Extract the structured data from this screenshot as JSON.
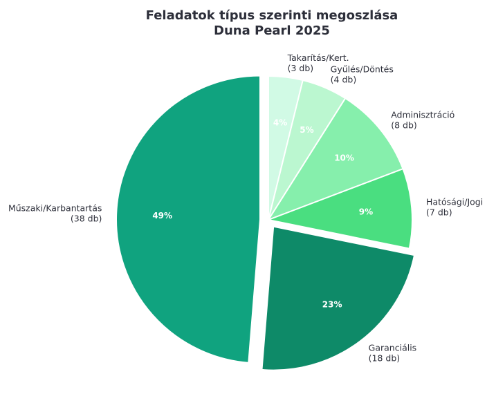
{
  "chart_data": {
    "type": "pie",
    "title_line1": "Feladatok típus szerinti megoszlása",
    "title_line2": "Duna Pearl 2025",
    "count_unit": "db",
    "start_angle_deg": 90,
    "direction": "clockwise",
    "slices": [
      {
        "label": "Takarítás/Kert.",
        "count": 3,
        "percent_label": "4%",
        "color": "#d1fae5",
        "exploded": false
      },
      {
        "label": "Gyűlés/Döntés",
        "count": 4,
        "percent_label": "5%",
        "color": "#bbf7d0",
        "exploded": false
      },
      {
        "label": "Adminisztráció",
        "count": 8,
        "percent_label": "10%",
        "color": "#86efac",
        "exploded": false
      },
      {
        "label": "Hatósági/Jogi",
        "count": 7,
        "percent_label": "9%",
        "color": "#4ade80",
        "exploded": false
      },
      {
        "label": "Garanciális",
        "count": 18,
        "percent_label": "23%",
        "color": "#0e8a68",
        "exploded": true
      },
      {
        "label": "Műszaki/Karbantartás",
        "count": 38,
        "percent_label": "49%",
        "color": "#10a37f",
        "exploded": true
      }
    ]
  }
}
